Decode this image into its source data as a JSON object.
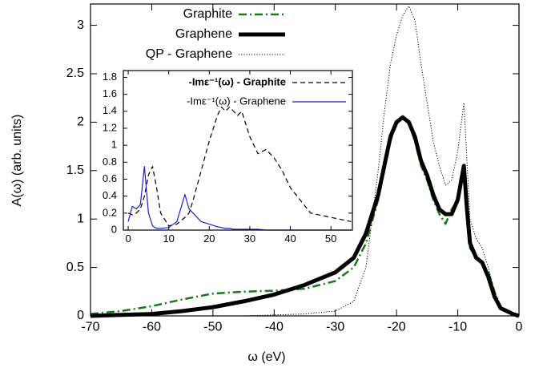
{
  "chart_data": [
    {
      "type": "line",
      "xlabel": "ω (eV)",
      "ylabel": "A(ω) (arb. units)",
      "x": [
        -70,
        -65,
        -60,
        -55,
        -50,
        -45,
        -40,
        -35,
        -30,
        -27,
        -25,
        -23,
        -22,
        -21,
        -20,
        -19,
        -18,
        -17,
        -16,
        -15,
        -14,
        -13,
        -12,
        -11,
        -10,
        -9,
        -8.5,
        -8,
        -7,
        -6,
        -5,
        -4,
        -3,
        -2,
        -1,
        0
      ],
      "series": [
        {
          "name": "Graphite",
          "color": "#1a7a1a",
          "style": "dashdot",
          "linewidth": 2.5,
          "values": [
            0.02,
            0.05,
            0.1,
            0.17,
            0.23,
            0.25,
            0.26,
            0.28,
            0.36,
            0.5,
            0.75,
            1.2,
            1.5,
            1.8,
            2.0,
            2.05,
            2.0,
            1.8,
            1.55,
            1.4,
            1.2,
            1.05,
            0.95,
            1.1,
            1.2,
            1.55,
            1.1,
            0.7,
            0.6,
            0.55,
            0.45,
            0.25,
            0.08,
            0.05,
            0.03,
            0
          ]
        },
        {
          "name": "Graphene",
          "color": "#000000",
          "style": "solid",
          "linewidth": 5,
          "values": [
            0,
            0.01,
            0.02,
            0.05,
            0.09,
            0.15,
            0.22,
            0.32,
            0.45,
            0.6,
            0.85,
            1.25,
            1.55,
            1.85,
            2.0,
            2.05,
            2.0,
            1.85,
            1.6,
            1.45,
            1.25,
            1.1,
            1.05,
            1.05,
            1.2,
            1.55,
            1.1,
            0.75,
            0.6,
            0.55,
            0.4,
            0.2,
            0.08,
            0.05,
            0.02,
            0
          ]
        },
        {
          "name": "QP - Graphene",
          "color": "#000000",
          "style": "dotted",
          "linewidth": 1,
          "values": [
            0,
            0,
            0,
            0,
            0,
            0,
            0.01,
            0.02,
            0.05,
            0.15,
            0.5,
            1.5,
            2.1,
            2.6,
            2.9,
            3.1,
            3.2,
            3.05,
            2.6,
            2.2,
            1.8,
            1.55,
            1.35,
            1.4,
            1.7,
            2.2,
            1.6,
            1.0,
            0.8,
            0.7,
            0.5,
            0.25,
            0.1,
            0.05,
            0.02,
            0
          ]
        }
      ],
      "xlim": [
        -70,
        0
      ],
      "ylim": [
        0,
        3.22
      ],
      "xticks": [
        -70,
        -60,
        -50,
        -40,
        -30,
        -20,
        -10,
        0
      ],
      "yticks": [
        0,
        0.5,
        1,
        1.5,
        2,
        2.5,
        3
      ],
      "legend": "top-left"
    },
    {
      "type": "line",
      "x": [
        0,
        1,
        2,
        3,
        4,
        5,
        6,
        7,
        8,
        10,
        12,
        14,
        15,
        16,
        18,
        20,
        22,
        23,
        24,
        25,
        26,
        27,
        28,
        30,
        32,
        34,
        36,
        38,
        40,
        45,
        50,
        55
      ],
      "series": [
        {
          "name": "-Imε⁻¹(ω) - Graphite",
          "color": "#000000",
          "style": "dashed",
          "linewidth": 1.2,
          "values": [
            0.2,
            0.18,
            0.2,
            0.25,
            0.4,
            0.65,
            0.75,
            0.5,
            0.2,
            0.05,
            0.07,
            0.15,
            0.2,
            0.35,
            0.7,
            1.05,
            1.35,
            1.45,
            1.4,
            1.45,
            1.4,
            1.35,
            1.4,
            1.1,
            0.9,
            0.95,
            0.85,
            0.7,
            0.5,
            0.2,
            0.15,
            0.1
          ]
        },
        {
          "name": "-Imε⁻¹(ω) - Graphene",
          "color": "#1f1fd0",
          "style": "solid",
          "linewidth": 1.2,
          "values": [
            0.1,
            0.28,
            0.25,
            0.3,
            0.75,
            0.2,
            0.05,
            0.02,
            0.02,
            0.03,
            0.1,
            0.42,
            0.25,
            0.2,
            0.1,
            0.07,
            0.04,
            0.03,
            0.02,
            0.02,
            0.01,
            0.01,
            0.01,
            0.01,
            0.01,
            0,
            0,
            0,
            0,
            0,
            0,
            0
          ]
        }
      ],
      "xlim": [
        -1.2,
        55.3
      ],
      "ylim": [
        0,
        1.88
      ],
      "xticks": [
        0,
        10,
        20,
        30,
        40,
        50
      ],
      "yticks": [
        0,
        0.2,
        0.4,
        0.6,
        0.8,
        1,
        1.2,
        1.4,
        1.6,
        1.8
      ],
      "legend": "top-right"
    }
  ]
}
